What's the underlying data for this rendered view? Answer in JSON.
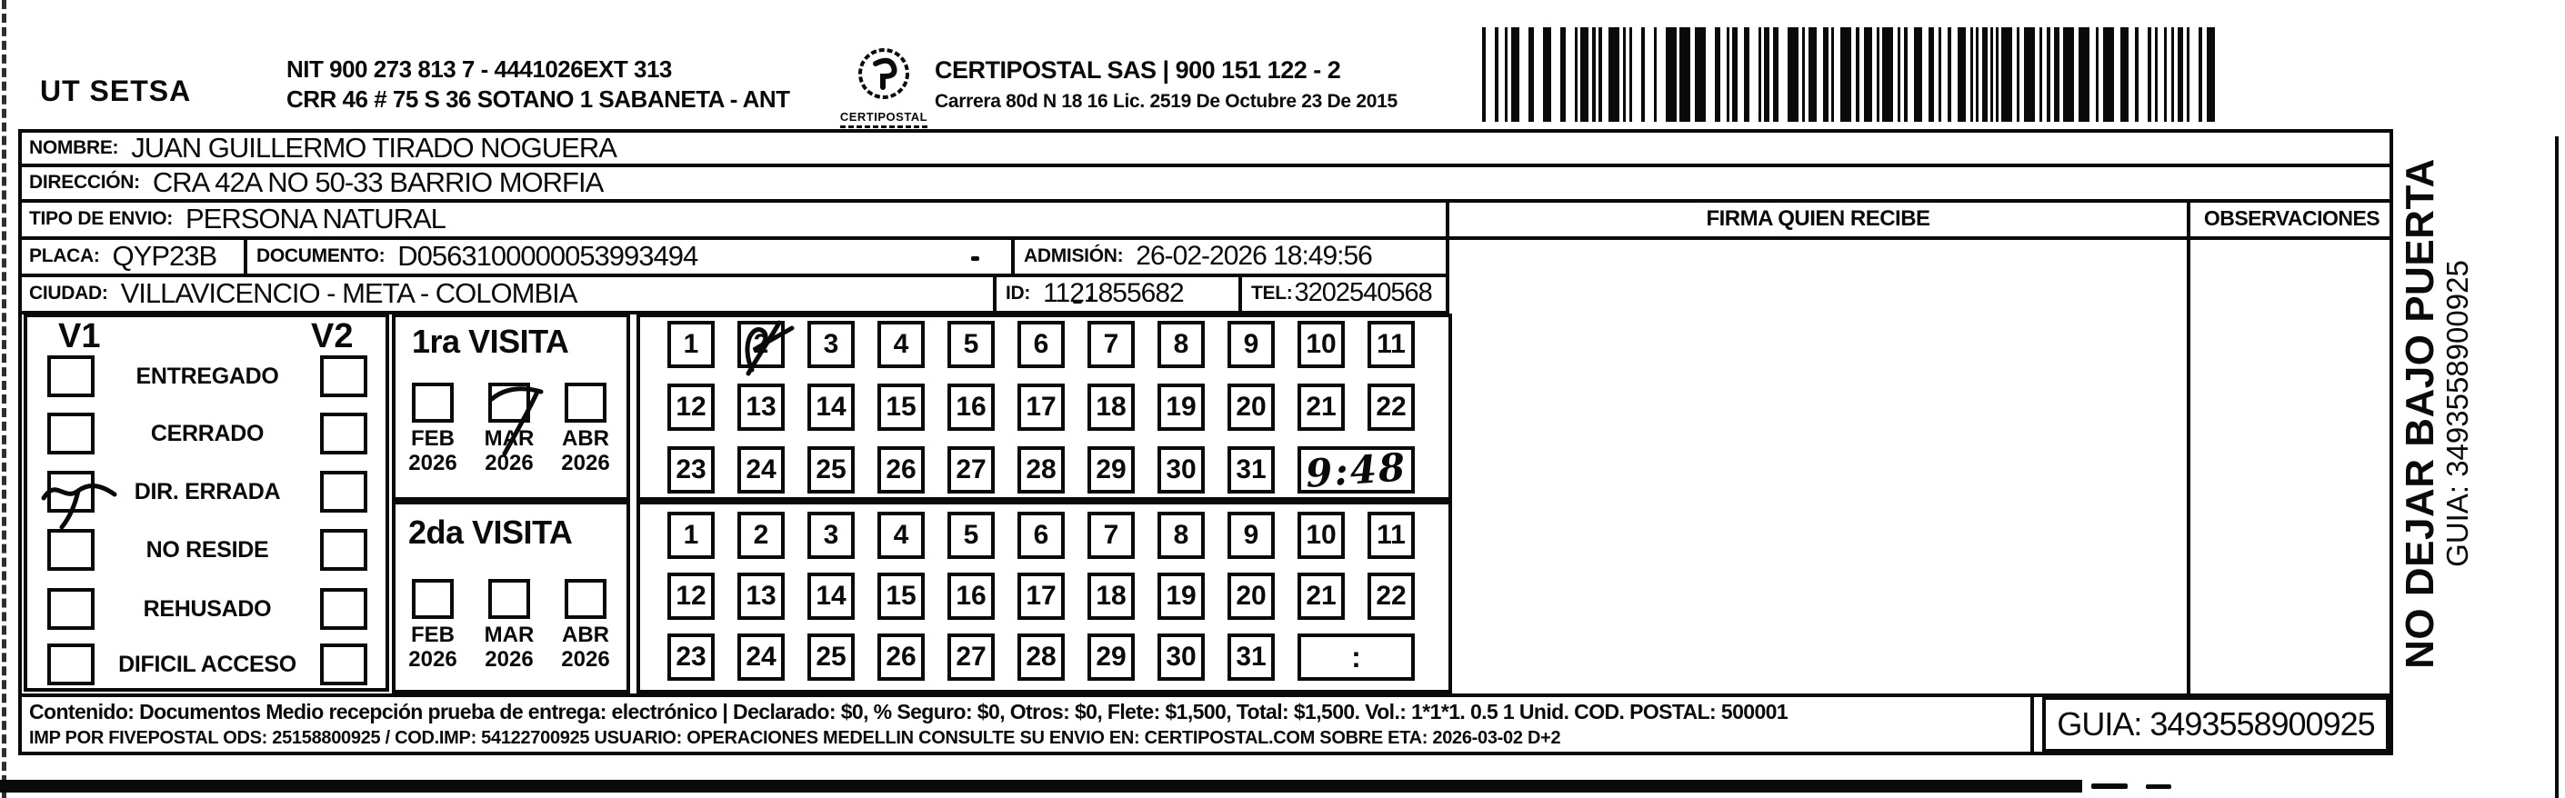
{
  "header": {
    "company": "UT SETSA",
    "nit_line1": "NIT 900 273 813 7 - 4441026EXT 313",
    "nit_line2": "CRR 46 # 75 S 36 SOTANO 1 SABANETA - ANT",
    "logo_caption": "CERTIPOSTAL",
    "cert_line1": "CERTIPOSTAL SAS | 900 151 122 - 2",
    "cert_line2": "Carrera 80d N 18 16  Lic. 2519 De Octubre 23 De 2015"
  },
  "fields": {
    "nombre_label": "NOMBRE:",
    "nombre_value": "JUAN GUILLERMO TIRADO NOGUERA",
    "direccion_label": "DIRECCIÓN:",
    "direccion_value": "CRA 42A NO 50-33 BARRIO MORFIA",
    "tipo_label": "TIPO DE ENVIO:",
    "tipo_value": "PERSONA NATURAL",
    "placa_label": "PLACA:",
    "placa_value": "QYP23B",
    "documento_label": "DOCUMENTO:",
    "documento_value": "D0563100000053993494",
    "admision_label": "ADMISIÓN:",
    "admision_value": "26-02-2026 18:49:56",
    "ciudad_label": "CIUDAD:",
    "ciudad_value": "VILLAVICENCIO - META - COLOMBIA",
    "id_label": "ID:",
    "id_value": "1121855682",
    "tel_label": "TEL:",
    "tel_value": "3202540568"
  },
  "columns": {
    "firma_header": "FIRMA QUIEN RECIBE",
    "observaciones_header": "OBSERVACIONES"
  },
  "status_panel": {
    "v1": "V1",
    "v2": "V2",
    "options": [
      "ENTREGADO",
      "CERRADO",
      "DIR. ERRADA",
      "NO RESIDE",
      "REHUSADO",
      "DIFICIL ACCESO"
    ],
    "v1_checked_option": "DIR. ERRADA"
  },
  "visits": {
    "first": {
      "title": "1ra VISITA",
      "months": [
        "FEB",
        "MAR",
        "ABR"
      ],
      "years": [
        "2026",
        "2026",
        "2026"
      ],
      "checked_month": "MAR",
      "checked_day": "2",
      "handwritten_time": "9:48"
    },
    "second": {
      "title": "2da VISITA",
      "months": [
        "FEB",
        "MAR",
        "ABR"
      ],
      "years": [
        "2026",
        "2026",
        "2026"
      ],
      "time_placeholder": ":"
    }
  },
  "days": [
    "1",
    "2",
    "3",
    "4",
    "5",
    "6",
    "7",
    "8",
    "9",
    "10",
    "11",
    "12",
    "13",
    "14",
    "15",
    "16",
    "17",
    "18",
    "19",
    "20",
    "21",
    "22",
    "23",
    "24",
    "25",
    "26",
    "27",
    "28",
    "29",
    "30",
    "31"
  ],
  "footer": {
    "line1": "Contenido: Documentos Medio recepción prueba de entrega: electrónico | Declarado: $0, % Seguro: $0, Otros: $0, Flete: $1,500, Total: $1,500. Vol.: 1*1*1. 0.5  1 Unid. COD. POSTAL: 500001",
    "line2": "IMP POR FIVEPOSTAL ODS: 25158800925 / COD.IMP: 54122700925 USUARIO: OPERACIONES MEDELLIN CONSULTE SU ENVIO EN: CERTIPOSTAL.COM SOBRE ETA: 2026-03-02 D+2",
    "guia": "GUIA: 3493558900925"
  },
  "side_note": {
    "line1": "NO DEJAR BAJO PUERTA",
    "line2": "GUIA: 3493558900925"
  }
}
